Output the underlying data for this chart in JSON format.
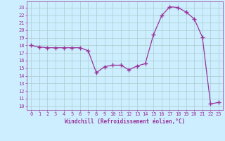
{
  "x": [
    0,
    1,
    2,
    3,
    4,
    5,
    6,
    7,
    8,
    9,
    10,
    11,
    12,
    13,
    14,
    15,
    16,
    17,
    18,
    19,
    20,
    21,
    22,
    23
  ],
  "y": [
    18.0,
    17.8,
    17.7,
    17.7,
    17.7,
    17.7,
    17.7,
    17.3,
    14.4,
    15.2,
    15.4,
    15.4,
    14.8,
    15.3,
    15.6,
    19.4,
    21.9,
    23.1,
    23.0,
    22.4,
    21.5,
    19.1,
    10.3,
    10.5
  ],
  "line_color": "#993399",
  "marker_color": "#993399",
  "bg_color": "#cceeff",
  "grid_color": "#aacccc",
  "xlabel": "Windchill (Refroidissement éolien,°C)",
  "ylabel_ticks": [
    10,
    11,
    12,
    13,
    14,
    15,
    16,
    17,
    18,
    19,
    20,
    21,
    22,
    23
  ],
  "xlim": [
    -0.5,
    23.5
  ],
  "ylim": [
    9.5,
    23.8
  ],
  "xlabel_color": "#993399",
  "tick_color": "#993399"
}
